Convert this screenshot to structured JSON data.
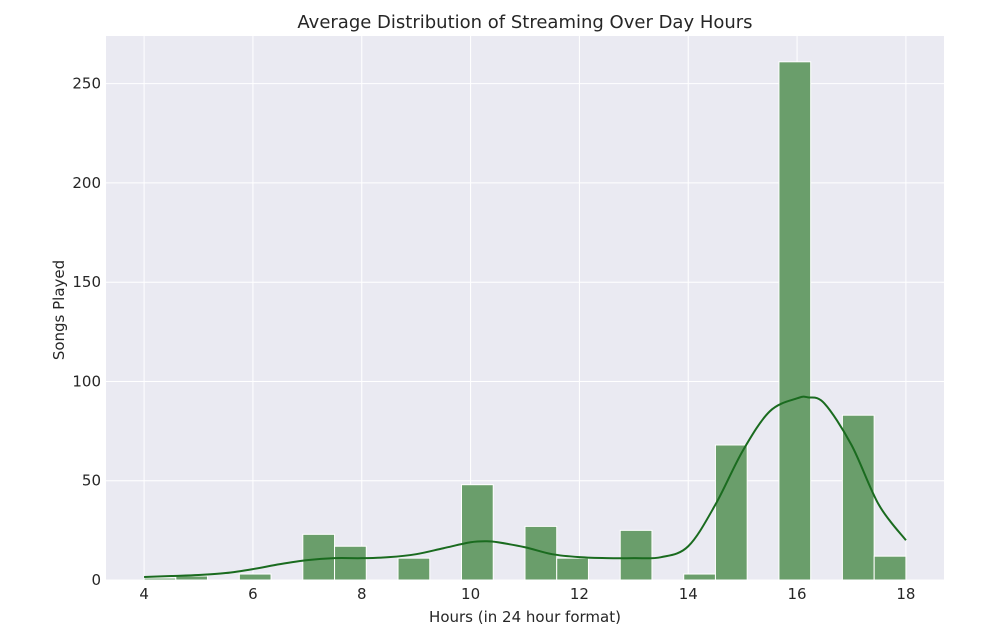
{
  "chart_data": {
    "type": "bar",
    "title": "Average Distribution of Streaming Over Day Hours",
    "xlabel": "Hours (in 24 hour format)",
    "ylabel": "Songs Played",
    "xlim": [
      3.3,
      18.7
    ],
    "ylim": [
      0,
      274
    ],
    "xticks": [
      4,
      6,
      8,
      10,
      12,
      14,
      16,
      18
    ],
    "yticks": [
      0,
      50,
      100,
      150,
      200,
      250
    ],
    "grid": true,
    "bin_width": 0.583,
    "bins": [
      {
        "x0": 4.0,
        "value": 1
      },
      {
        "x0": 4.583,
        "value": 2
      },
      {
        "x0": 5.167,
        "value": 0
      },
      {
        "x0": 5.75,
        "value": 3
      },
      {
        "x0": 6.333,
        "value": 0
      },
      {
        "x0": 6.917,
        "value": 23
      },
      {
        "x0": 7.5,
        "value": 17
      },
      {
        "x0": 8.083,
        "value": 0
      },
      {
        "x0": 8.667,
        "value": 11
      },
      {
        "x0": 9.25,
        "value": 0
      },
      {
        "x0": 9.833,
        "value": 48
      },
      {
        "x0": 10.417,
        "value": 0
      },
      {
        "x0": 11.0,
        "value": 27
      },
      {
        "x0": 11.583,
        "value": 11
      },
      {
        "x0": 12.167,
        "value": 0
      },
      {
        "x0": 12.75,
        "value": 25
      },
      {
        "x0": 13.333,
        "value": 0
      },
      {
        "x0": 13.917,
        "value": 3
      },
      {
        "x0": 14.5,
        "value": 68
      },
      {
        "x0": 15.083,
        "value": 0
      },
      {
        "x0": 15.667,
        "value": 261
      },
      {
        "x0": 16.25,
        "value": 0
      },
      {
        "x0": 16.833,
        "value": 83
      },
      {
        "x0": 17.417,
        "value": 12
      }
    ],
    "kde": {
      "x": [
        4,
        4.5,
        5,
        5.5,
        6,
        6.5,
        7,
        7.5,
        8,
        8.5,
        9,
        9.5,
        10,
        10.3,
        10.5,
        11,
        11.5,
        12,
        12.5,
        13,
        13.5,
        14,
        14.5,
        15,
        15.5,
        16,
        16.2,
        16.5,
        17,
        17.5,
        18
      ],
      "y": [
        1.5,
        2,
        2.5,
        3.5,
        5.5,
        8,
        10,
        11,
        11,
        11.5,
        13,
        16,
        19,
        19.5,
        19,
        16.5,
        13,
        11.5,
        11,
        11,
        11.5,
        17,
        38,
        65,
        85,
        91.5,
        92,
        89,
        68,
        38,
        20
      ]
    },
    "colors": {
      "bar_fill": "#6a9e6b",
      "bar_edge": "#ffffff",
      "kde_line": "#1a6b1f",
      "plot_bg": "#eaeaf2",
      "grid": "#ffffff"
    }
  }
}
